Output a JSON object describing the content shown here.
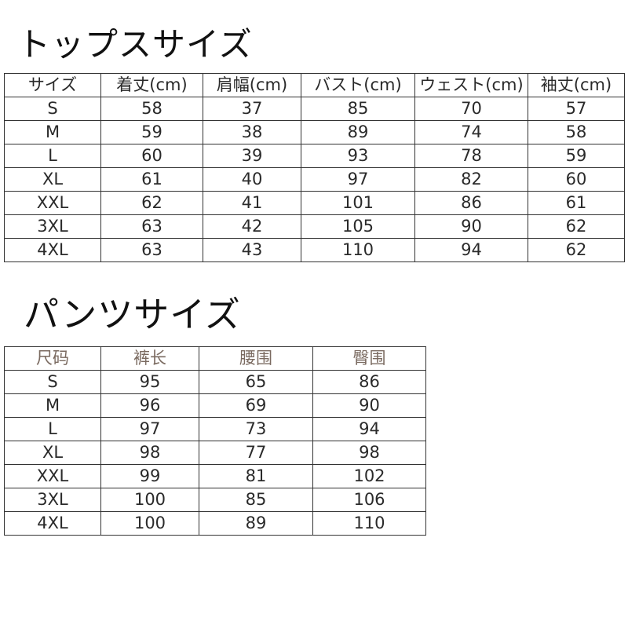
{
  "tops": {
    "title": "トップスサイズ",
    "headers": [
      "サイズ",
      "着丈(cm)",
      "肩幅(cm)",
      "バスト(cm)",
      "ウェスト(cm)",
      "袖丈(cm)"
    ],
    "rows": [
      [
        "S",
        "58",
        "37",
        "85",
        "70",
        "57"
      ],
      [
        "M",
        "59",
        "38",
        "89",
        "74",
        "58"
      ],
      [
        "L",
        "60",
        "39",
        "93",
        "78",
        "59"
      ],
      [
        "XL",
        "61",
        "40",
        "97",
        "82",
        "60"
      ],
      [
        "XXL",
        "62",
        "41",
        "101",
        "86",
        "61"
      ],
      [
        "3XL",
        "63",
        "42",
        "105",
        "90",
        "62"
      ],
      [
        "4XL",
        "63",
        "43",
        "110",
        "94",
        "62"
      ]
    ]
  },
  "pants": {
    "title": "パンツサイズ",
    "headers": [
      "尺码",
      "裤长",
      "腰围",
      "臀围"
    ],
    "header_color": "#7a6a60",
    "rows": [
      [
        "S",
        "95",
        "65",
        "86"
      ],
      [
        "M",
        "96",
        "69",
        "90"
      ],
      [
        "L",
        "97",
        "73",
        "94"
      ],
      [
        "XL",
        "98",
        "77",
        "98"
      ],
      [
        "XXL",
        "99",
        "81",
        "102"
      ],
      [
        "3XL",
        "100",
        "85",
        "106"
      ],
      [
        "4XL",
        "100",
        "89",
        "110"
      ]
    ]
  }
}
